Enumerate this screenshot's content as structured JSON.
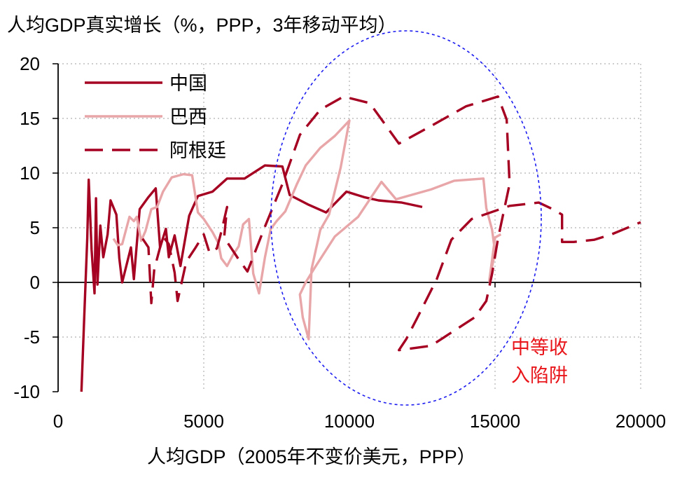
{
  "chart_data": {
    "type": "line",
    "title": "人均GDP真实增长（%，PPP，3年移动平均）",
    "xlabel": "人均GDP（2005年不变价美元，PPP）",
    "ylabel": "",
    "xlim": [
      0,
      20000
    ],
    "ylim": [
      -10,
      20
    ],
    "xticks": [
      "0",
      "5000",
      "10000",
      "15000",
      "20000"
    ],
    "yticks": [
      "20",
      "15",
      "10",
      "5",
      "0",
      "-5",
      "-10"
    ],
    "grid": "dotted",
    "legend_position": "top-left",
    "series": [
      {
        "name": "中国",
        "color": "#a50021",
        "dash": "solid",
        "points": [
          [
            800,
            -10
          ],
          [
            900,
            -3
          ],
          [
            1000,
            4
          ],
          [
            1050,
            9.4
          ],
          [
            1150,
            3
          ],
          [
            1250,
            -1
          ],
          [
            1300,
            7.7
          ],
          [
            1350,
            -0.2
          ],
          [
            1450,
            5.2
          ],
          [
            1550,
            2.3
          ],
          [
            1700,
            4.4
          ],
          [
            1800,
            7.5
          ],
          [
            2000,
            6.2
          ],
          [
            2100,
            2.2
          ],
          [
            2200,
            0
          ],
          [
            2500,
            3.2
          ],
          [
            2600,
            0.3
          ],
          [
            2800,
            6.7
          ],
          [
            3100,
            7.8
          ],
          [
            3350,
            8.6
          ],
          [
            3500,
            3.2
          ],
          [
            3700,
            4.9
          ],
          [
            3800,
            2.3
          ],
          [
            4000,
            4.3
          ],
          [
            4200,
            1.5
          ],
          [
            4500,
            6.1
          ],
          [
            4800,
            7.9
          ],
          [
            5300,
            8.3
          ],
          [
            5800,
            9.5
          ],
          [
            6400,
            9.5
          ],
          [
            7100,
            10.7
          ],
          [
            7700,
            10.6
          ],
          [
            7950,
            8
          ],
          [
            8600,
            7.1
          ],
          [
            9200,
            6.4
          ],
          [
            9900,
            8.3
          ],
          [
            10500,
            7.8
          ],
          [
            11000,
            7.5
          ],
          [
            11800,
            7.3
          ],
          [
            12500,
            6.9
          ]
        ]
      },
      {
        "name": "巴西",
        "color": "#e8a6a9",
        "dash": "solid",
        "points": [
          [
            1900,
            4
          ],
          [
            2050,
            3.4
          ],
          [
            2200,
            3.5
          ],
          [
            2450,
            6
          ],
          [
            2600,
            5.6
          ],
          [
            2700,
            6
          ],
          [
            2850,
            3.8
          ],
          [
            3000,
            4.7
          ],
          [
            3200,
            6.7
          ],
          [
            3400,
            6.9
          ],
          [
            3600,
            8.3
          ],
          [
            3900,
            9.6
          ],
          [
            4300,
            9.9
          ],
          [
            4600,
            9.8
          ],
          [
            4800,
            6.4
          ],
          [
            5000,
            5.8
          ],
          [
            5300,
            4.6
          ],
          [
            5500,
            3.6
          ],
          [
            5600,
            2.2
          ],
          [
            5800,
            1.5
          ],
          [
            6000,
            2.5
          ],
          [
            6200,
            3.3
          ],
          [
            6350,
            5.3
          ],
          [
            6550,
            5.8
          ],
          [
            6700,
            0.8
          ],
          [
            6900,
            -1
          ],
          [
            7100,
            2.3
          ],
          [
            7300,
            4.9
          ],
          [
            7500,
            5.6
          ],
          [
            7800,
            6.5
          ],
          [
            8200,
            9
          ],
          [
            8500,
            10.7
          ],
          [
            9000,
            12.3
          ],
          [
            9500,
            13.4
          ],
          [
            10000,
            14.8
          ],
          [
            9700,
            10.5
          ],
          [
            9300,
            6.2
          ],
          [
            9000,
            4.8
          ],
          [
            8700,
            1.2
          ],
          [
            8600,
            -5.2
          ],
          [
            8400,
            -3.2
          ],
          [
            8300,
            -1.1
          ],
          [
            8500,
            0
          ],
          [
            8800,
            1.3
          ],
          [
            9500,
            4.2
          ],
          [
            10300,
            6
          ],
          [
            11100,
            9.2
          ],
          [
            11600,
            7.6
          ],
          [
            12800,
            8.5
          ],
          [
            13600,
            9.3
          ],
          [
            14600,
            9.5
          ],
          [
            14700,
            6.8
          ],
          [
            14900,
            4.8
          ],
          [
            15000,
            2.8
          ],
          [
            14800,
            0.1
          ],
          [
            15000,
            4.1
          ],
          [
            15200,
            4.4
          ]
        ]
      },
      {
        "name": "阿根廷",
        "color": "#a50021",
        "dash": "dashed",
        "points": [
          [
            2900,
            4
          ],
          [
            3100,
            3.2
          ],
          [
            3200,
            -1.9
          ],
          [
            3300,
            1.2
          ],
          [
            3450,
            2.7
          ],
          [
            3600,
            4.2
          ],
          [
            3800,
            3.5
          ],
          [
            4000,
            0.9
          ],
          [
            4100,
            -1.7
          ],
          [
            4400,
            1.9
          ],
          [
            4700,
            3.1
          ],
          [
            5000,
            4.4
          ],
          [
            5200,
            2.7
          ],
          [
            5450,
            3.1
          ],
          [
            5600,
            4.6
          ],
          [
            5800,
            6.9
          ],
          [
            5700,
            4.1
          ],
          [
            6200,
            2.1
          ],
          [
            6500,
            1
          ],
          [
            7100,
            5.1
          ],
          [
            7700,
            9
          ],
          [
            8300,
            13.5
          ],
          [
            9000,
            15.8
          ],
          [
            9800,
            17
          ],
          [
            10700,
            16.4
          ],
          [
            11700,
            12.7
          ],
          [
            12800,
            14.3
          ],
          [
            14000,
            16.1
          ],
          [
            15100,
            17
          ],
          [
            15400,
            14.9
          ],
          [
            15500,
            9
          ],
          [
            15100,
            4
          ],
          [
            14900,
            0.8
          ],
          [
            14700,
            -1.7
          ],
          [
            14300,
            -3.2
          ],
          [
            12800,
            -5.8
          ],
          [
            11700,
            -6.2
          ],
          [
            11950,
            -5.2
          ],
          [
            12300,
            -3.4
          ],
          [
            13000,
            0.3
          ],
          [
            13500,
            3.9
          ],
          [
            14200,
            5.8
          ],
          [
            15500,
            7
          ],
          [
            16500,
            7.3
          ],
          [
            16900,
            6.8
          ],
          [
            17050,
            6.6
          ],
          [
            17300,
            6.2
          ],
          [
            17300,
            3.7
          ],
          [
            17700,
            3.7
          ],
          [
            18400,
            3.9
          ],
          [
            19000,
            4.4
          ],
          [
            20000,
            5.5
          ]
        ]
      }
    ],
    "annotations": [
      {
        "text_lines": [
          "中等收",
          "入陷阱"
        ],
        "color": "#e8161b"
      }
    ],
    "highlight_ellipse": {
      "color": "#1c1cf0",
      "style": "dotted"
    }
  }
}
